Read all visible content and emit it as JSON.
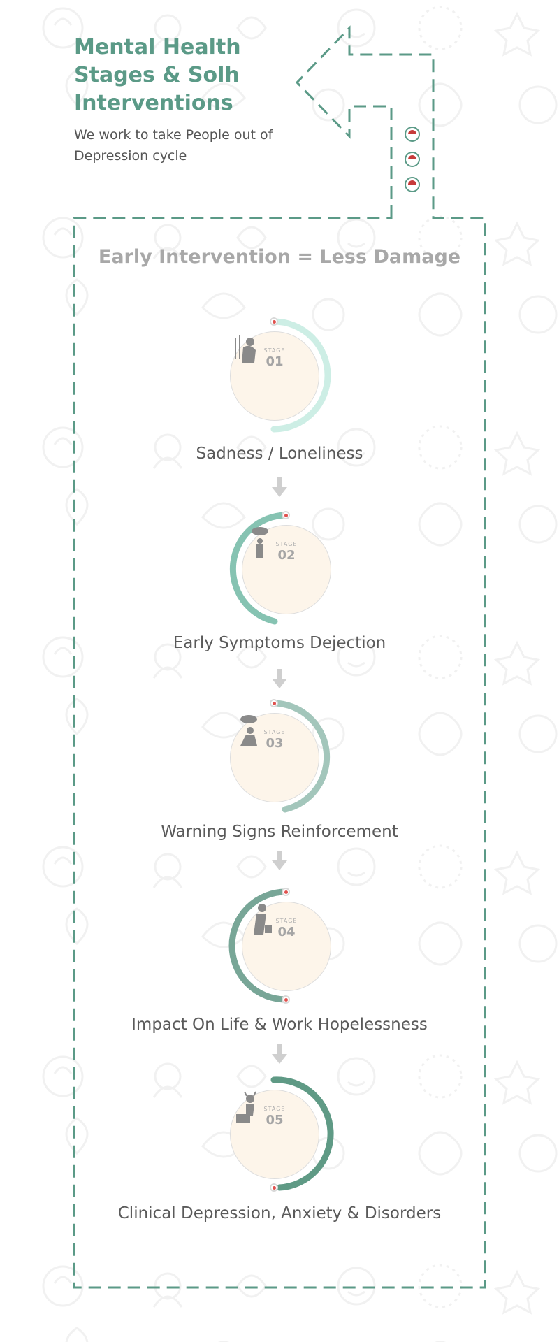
{
  "header": {
    "title": "Mental Health Stages & Solh Interventions",
    "subtitle": "We work to take People out of Depression cycle"
  },
  "headline": "Early Intervention = Less Damage",
  "stages": [
    {
      "stage_word": "STAGE",
      "number": "01",
      "label": "Sadness / Loneliness",
      "arc_color": "#cdeee5",
      "icon": "sitting-sad-person-icon"
    },
    {
      "stage_word": "STAGE",
      "number": "02",
      "label": "Early Symptoms Dejection",
      "arc_color": "#86c3b2",
      "icon": "person-under-rain-cloud-icon"
    },
    {
      "stage_word": "STAGE",
      "number": "03",
      "label": "Warning Signs Reinforcement",
      "arc_color": "#a3c6bb",
      "icon": "crouching-person-rain-icon"
    },
    {
      "stage_word": "STAGE",
      "number": "04",
      "label": "Impact On Life & Work Hopelessness",
      "arc_color": "#78a697",
      "icon": "slumped-person-briefcase-icon"
    },
    {
      "stage_word": "STAGE",
      "number": "05",
      "label": "Clinical Depression, Anxiety & Disorders",
      "arc_color": "#5f9a85",
      "icon": "distressed-sitting-person-icon"
    }
  ],
  "colors": {
    "accent": "#5b9a87",
    "frame_dash": "#5b9a87",
    "marker_red": "#e0514e",
    "circle_fill": "#fdf5ea"
  }
}
